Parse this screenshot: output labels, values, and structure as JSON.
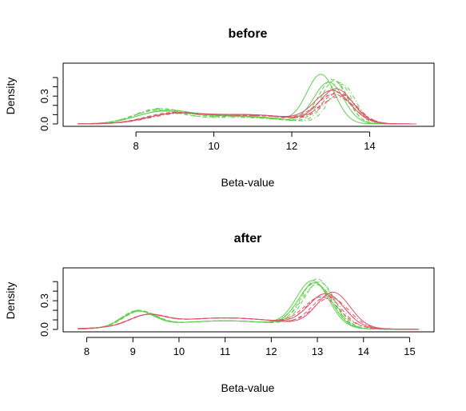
{
  "chart_data": [
    {
      "type": "line",
      "title": "before",
      "xlabel": "Beta-value",
      "ylabel": "Density",
      "xlim": [
        6.5,
        15.2
      ],
      "ylim": [
        0.0,
        0.56
      ],
      "xticks": [
        "8",
        "10",
        "12",
        "14"
      ],
      "yticks": [
        "0.0",
        "0.3"
      ],
      "grid": false,
      "colors": [
        "#61d04f",
        "#df536b"
      ],
      "series": [
        {
          "group": "green",
          "dash": "solid",
          "components": [
            {
              "mu": 8.6,
              "sd": 0.65,
              "w": 0.11
            },
            {
              "mu": 10.5,
              "sd": 1.2,
              "w": 0.09
            },
            {
              "mu": 12.75,
              "sd": 0.36,
              "w": 0.52
            }
          ]
        },
        {
          "group": "green",
          "dash": "solid",
          "components": [
            {
              "mu": 8.7,
              "sd": 0.7,
              "w": 0.12
            },
            {
              "mu": 10.5,
              "sd": 1.2,
              "w": 0.08
            },
            {
              "mu": 12.95,
              "sd": 0.38,
              "w": 0.44
            }
          ]
        },
        {
          "group": "green",
          "dash": "dashed",
          "components": [
            {
              "mu": 8.5,
              "sd": 0.6,
              "w": 0.13
            },
            {
              "mu": 10.6,
              "sd": 1.2,
              "w": 0.08
            },
            {
              "mu": 13.05,
              "sd": 0.36,
              "w": 0.47
            }
          ]
        },
        {
          "group": "green",
          "dash": "dashed",
          "components": [
            {
              "mu": 8.6,
              "sd": 0.62,
              "w": 0.14
            },
            {
              "mu": 10.5,
              "sd": 1.2,
              "w": 0.08
            },
            {
              "mu": 13.1,
              "sd": 0.34,
              "w": 0.46
            }
          ]
        },
        {
          "group": "green",
          "dash": "dotdash",
          "components": [
            {
              "mu": 8.55,
              "sd": 0.6,
              "w": 0.15
            },
            {
              "mu": 10.6,
              "sd": 1.2,
              "w": 0.07
            },
            {
              "mu": 13.2,
              "sd": 0.34,
              "w": 0.44
            }
          ]
        },
        {
          "group": "green",
          "dash": "dotdash",
          "components": [
            {
              "mu": 8.6,
              "sd": 0.65,
              "w": 0.14
            },
            {
              "mu": 10.6,
              "sd": 1.2,
              "w": 0.08
            },
            {
              "mu": 13.3,
              "sd": 0.33,
              "w": 0.42
            }
          ]
        },
        {
          "group": "red",
          "dash": "solid",
          "components": [
            {
              "mu": 8.9,
              "sd": 0.65,
              "w": 0.08
            },
            {
              "mu": 10.8,
              "sd": 1.3,
              "w": 0.1
            },
            {
              "mu": 13.15,
              "sd": 0.42,
              "w": 0.36
            }
          ]
        },
        {
          "group": "red",
          "dash": "solid",
          "components": [
            {
              "mu": 8.9,
              "sd": 0.7,
              "w": 0.08
            },
            {
              "mu": 10.8,
              "sd": 1.3,
              "w": 0.1
            },
            {
              "mu": 13.05,
              "sd": 0.45,
              "w": 0.34
            }
          ]
        },
        {
          "group": "red",
          "dash": "dashed",
          "components": [
            {
              "mu": 8.95,
              "sd": 0.68,
              "w": 0.09
            },
            {
              "mu": 10.9,
              "sd": 1.3,
              "w": 0.09
            },
            {
              "mu": 13.2,
              "sd": 0.42,
              "w": 0.32
            }
          ]
        },
        {
          "group": "red",
          "dash": "dashed",
          "components": [
            {
              "mu": 8.85,
              "sd": 0.66,
              "w": 0.09
            },
            {
              "mu": 10.8,
              "sd": 1.3,
              "w": 0.1
            },
            {
              "mu": 13.1,
              "sd": 0.45,
              "w": 0.3
            }
          ]
        },
        {
          "group": "red",
          "dash": "dotdash",
          "components": [
            {
              "mu": 9.0,
              "sd": 0.7,
              "w": 0.08
            },
            {
              "mu": 10.9,
              "sd": 1.3,
              "w": 0.09
            },
            {
              "mu": 13.2,
              "sd": 0.45,
              "w": 0.27
            }
          ]
        },
        {
          "group": "red",
          "dash": "dotdash",
          "components": [
            {
              "mu": 8.9,
              "sd": 0.68,
              "w": 0.08
            },
            {
              "mu": 10.8,
              "sd": 1.3,
              "w": 0.1
            },
            {
              "mu": 13.25,
              "sd": 0.42,
              "w": 0.3
            }
          ]
        }
      ]
    },
    {
      "type": "line",
      "title": "after",
      "xlabel": "Beta-value",
      "ylabel": "Density",
      "xlim": [
        7.8,
        15.2
      ],
      "ylim": [
        0.0,
        0.56
      ],
      "xticks": [
        "8",
        "9",
        "10",
        "11",
        "12",
        "13",
        "14",
        "15"
      ],
      "yticks": [
        "0.0",
        "0.3"
      ],
      "grid": false,
      "colors": [
        "#61d04f",
        "#df536b"
      ],
      "series": [
        {
          "group": "green",
          "dash": "solid",
          "components": [
            {
              "mu": 9.1,
              "sd": 0.35,
              "w": 0.16
            },
            {
              "mu": 11.0,
              "sd": 1.3,
              "w": 0.09
            },
            {
              "mu": 12.9,
              "sd": 0.35,
              "w": 0.48
            }
          ]
        },
        {
          "group": "green",
          "dash": "solid",
          "components": [
            {
              "mu": 9.12,
              "sd": 0.36,
              "w": 0.16
            },
            {
              "mu": 11.0,
              "sd": 1.3,
              "w": 0.09
            },
            {
              "mu": 12.95,
              "sd": 0.35,
              "w": 0.46
            }
          ]
        },
        {
          "group": "green",
          "dash": "dashed",
          "components": [
            {
              "mu": 9.1,
              "sd": 0.35,
              "w": 0.17
            },
            {
              "mu": 11.0,
              "sd": 1.3,
              "w": 0.09
            },
            {
              "mu": 13.0,
              "sd": 0.34,
              "w": 0.5
            }
          ]
        },
        {
          "group": "green",
          "dash": "dashed",
          "components": [
            {
              "mu": 9.15,
              "sd": 0.36,
              "w": 0.16
            },
            {
              "mu": 11.0,
              "sd": 1.3,
              "w": 0.09
            },
            {
              "mu": 13.05,
              "sd": 0.34,
              "w": 0.47
            }
          ]
        },
        {
          "group": "green",
          "dash": "dotdash",
          "components": [
            {
              "mu": 9.1,
              "sd": 0.35,
              "w": 0.17
            },
            {
              "mu": 11.0,
              "sd": 1.3,
              "w": 0.09
            },
            {
              "mu": 13.0,
              "sd": 0.35,
              "w": 0.44
            }
          ]
        },
        {
          "group": "green",
          "dash": "dotdash",
          "components": [
            {
              "mu": 9.12,
              "sd": 0.36,
              "w": 0.16
            },
            {
              "mu": 11.0,
              "sd": 1.3,
              "w": 0.09
            },
            {
              "mu": 12.95,
              "sd": 0.36,
              "w": 0.45
            }
          ]
        },
        {
          "group": "red",
          "dash": "solid",
          "components": [
            {
              "mu": 9.3,
              "sd": 0.38,
              "w": 0.1
            },
            {
              "mu": 11.0,
              "sd": 1.4,
              "w": 0.12
            },
            {
              "mu": 13.2,
              "sd": 0.38,
              "w": 0.34
            }
          ]
        },
        {
          "group": "red",
          "dash": "solid",
          "components": [
            {
              "mu": 9.3,
              "sd": 0.38,
              "w": 0.1
            },
            {
              "mu": 11.0,
              "sd": 1.4,
              "w": 0.12
            },
            {
              "mu": 13.35,
              "sd": 0.36,
              "w": 0.36
            }
          ]
        },
        {
          "group": "red",
          "dash": "dashed",
          "components": [
            {
              "mu": 9.32,
              "sd": 0.38,
              "w": 0.1
            },
            {
              "mu": 11.0,
              "sd": 1.4,
              "w": 0.12
            },
            {
              "mu": 13.1,
              "sd": 0.38,
              "w": 0.3
            }
          ]
        },
        {
          "group": "red",
          "dash": "dashed",
          "components": [
            {
              "mu": 9.28,
              "sd": 0.38,
              "w": 0.1
            },
            {
              "mu": 11.0,
              "sd": 1.4,
              "w": 0.12
            },
            {
              "mu": 13.25,
              "sd": 0.36,
              "w": 0.32
            }
          ]
        },
        {
          "group": "red",
          "dash": "dotdash",
          "components": [
            {
              "mu": 9.3,
              "sd": 0.38,
              "w": 0.1
            },
            {
              "mu": 11.0,
              "sd": 1.4,
              "w": 0.12
            },
            {
              "mu": 13.3,
              "sd": 0.38,
              "w": 0.3
            }
          ]
        },
        {
          "group": "red",
          "dash": "dotdash",
          "components": [
            {
              "mu": 9.3,
              "sd": 0.38,
              "w": 0.1
            },
            {
              "mu": 11.0,
              "sd": 1.4,
              "w": 0.12
            },
            {
              "mu": 13.15,
              "sd": 0.36,
              "w": 0.33
            }
          ]
        }
      ]
    }
  ]
}
